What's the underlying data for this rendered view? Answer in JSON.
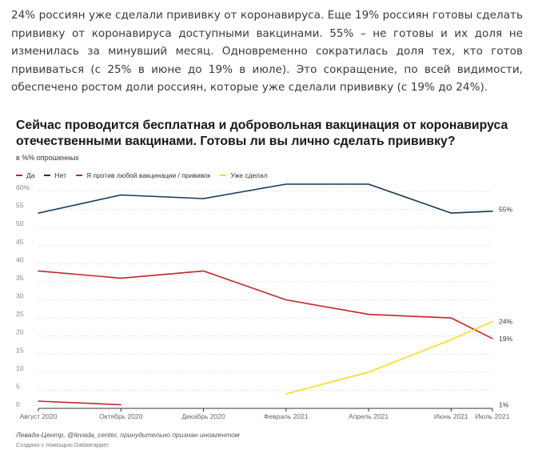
{
  "article": {
    "intro_text": "24% россиян уже сделали прививку от коронавируса. Еще 19% россиян готовы сделать прививку от коронавируса доступными вакцинами. 55% – не готовы и их доля не изменилась за минувший месяц. Одновременно сократилась доля тех, кто готов прививаться (с 25% в июне до 19% в июле). Это сокращение, по всей видимости, обеспечено ростом доли россиян, которые уже сделали прививку (с 19% до 24%)."
  },
  "footer": {
    "source": "Левада-Центр, @levada_center, принудительно признан иноагентом",
    "credit": "Создано с помощью Datawrapper"
  },
  "chart_data": {
    "type": "line",
    "title": "Сейчас проводится бесплатная и добровольная вакцинация от коронавируса отечественными вакцинами. Готовы ли вы лично сделать прививку?",
    "subtitle": "в %% опрошенных",
    "x_month_range": [
      0,
      11
    ],
    "x_ticks": [
      {
        "label": "Август 2020",
        "month": 0
      },
      {
        "label": "Октябрь 2020",
        "month": 2
      },
      {
        "label": "Декабрь 2020",
        "month": 4
      },
      {
        "label": "Февраль 2021",
        "month": 6
      },
      {
        "label": "Апрель 2021",
        "month": 8
      },
      {
        "label": "Июнь 2021",
        "month": 10
      },
      {
        "label": "Июль 2021",
        "month": 11
      }
    ],
    "y_ticks": [
      {
        "label": "0",
        "value": 0
      },
      {
        "label": "5",
        "value": 5
      },
      {
        "label": "10",
        "value": 10
      },
      {
        "label": "15",
        "value": 15
      },
      {
        "label": "20",
        "value": 20
      },
      {
        "label": "25",
        "value": 25
      },
      {
        "label": "30",
        "value": 30
      },
      {
        "label": "35",
        "value": 35
      },
      {
        "label": "40",
        "value": 40
      },
      {
        "label": "45",
        "value": 45
      },
      {
        "label": "50",
        "value": 50
      },
      {
        "label": "55",
        "value": 55
      },
      {
        "label": "60%",
        "value": 60
      }
    ],
    "ylim": [
      0,
      60
    ],
    "grid": true,
    "legend_position": "top-left",
    "series": [
      {
        "name": "Да",
        "color": "#c0262c",
        "segments": [
          [
            {
              "month": 0,
              "value": 2
            },
            {
              "month": 2,
              "value": 1
            }
          ],
          [
            {
              "month": 0,
              "value": 38
            },
            {
              "month": 2,
              "value": 36
            },
            {
              "month": 4,
              "value": 38
            },
            {
              "month": 6,
              "value": 30
            },
            {
              "month": 8,
              "value": 26
            },
            {
              "month": 10,
              "value": 25
            },
            {
              "month": 11,
              "value": 19.3
            }
          ]
        ]
      },
      {
        "name": "Нет",
        "color": "#15375a",
        "segments": [
          [
            {
              "month": 0,
              "value": 54
            },
            {
              "month": 2,
              "value": 59
            },
            {
              "month": 4,
              "value": 58
            },
            {
              "month": 6,
              "value": 62
            },
            {
              "month": 8,
              "value": 62
            },
            {
              "month": 10,
              "value": 54
            },
            {
              "month": 11,
              "value": 54.5
            }
          ]
        ]
      },
      {
        "name": "Я против любой вакцинации / прививок",
        "color": "#c0262c",
        "segments": []
      },
      {
        "name": "Уже сделал",
        "color": "#f7dc1e",
        "segments": [
          [
            {
              "month": 6,
              "value": 4
            },
            {
              "month": 8,
              "value": 10
            },
            {
              "month": 10,
              "value": 19
            },
            {
              "month": 11,
              "value": 24
            }
          ]
        ]
      }
    ],
    "end_labels": [
      {
        "text": "55%",
        "value": 55
      },
      {
        "text": "24%",
        "value": 24
      },
      {
        "text": "19%",
        "value": 19.3
      },
      {
        "text": "1%",
        "value": 1
      }
    ]
  }
}
